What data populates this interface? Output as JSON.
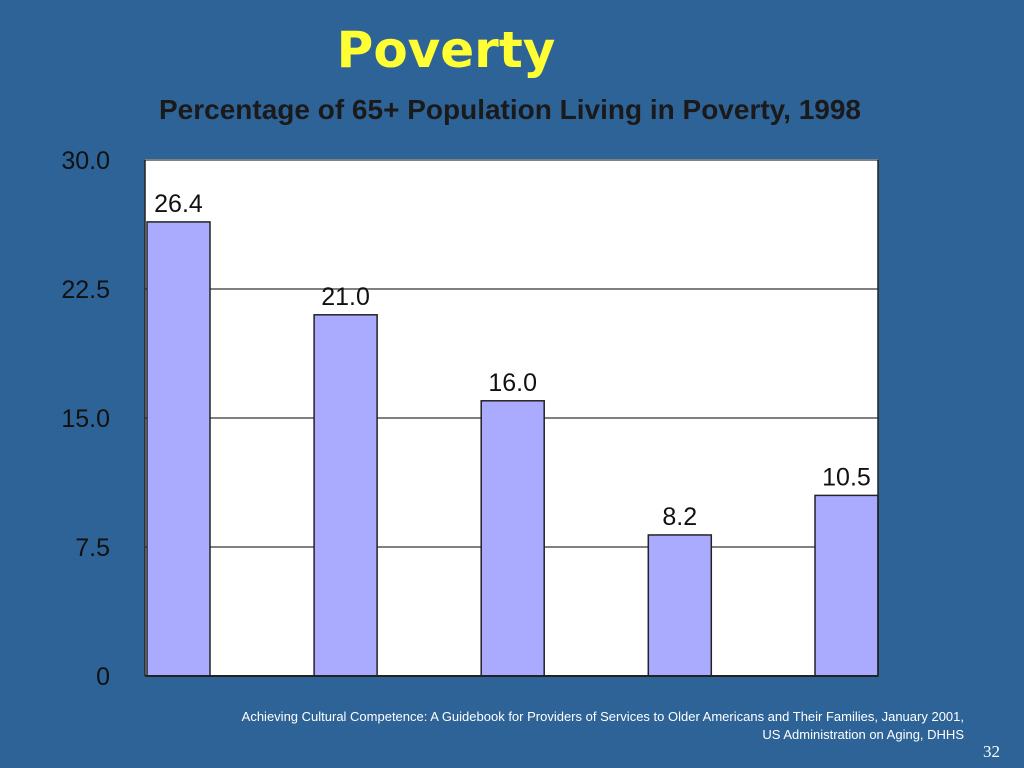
{
  "slide": {
    "title": "Poverty",
    "source_line1": "Achieving Cultural Competence:  A Guidebook for Providers of Services to Older Americans and Their Families, January 2001,",
    "source_line2": "US Administration on Aging, DHHS",
    "page_number": "32"
  },
  "colors": {
    "background": "#2e6398",
    "title": "#ffff33",
    "bar_fill": "#aaaaff",
    "plot_area": "#ffffff"
  },
  "chart_data": {
    "type": "bar",
    "title": "Percentage of 65+ Population Living in Poverty, 1998",
    "xlabel": "",
    "ylabel": "",
    "categories": [
      "",
      "",
      "",
      "",
      ""
    ],
    "values": [
      26.4,
      21.0,
      16.0,
      8.2,
      10.5
    ],
    "value_labels": [
      "26.4",
      "21.0",
      "16.0",
      "8.2",
      "10.5"
    ],
    "yticks": [
      0,
      7.5,
      15.0,
      22.5,
      30.0
    ],
    "ytick_labels": [
      "0",
      "7.5",
      "15.0",
      "22.5",
      "30.0"
    ],
    "ylim": [
      0,
      30
    ],
    "grid": true,
    "legend": "none"
  }
}
